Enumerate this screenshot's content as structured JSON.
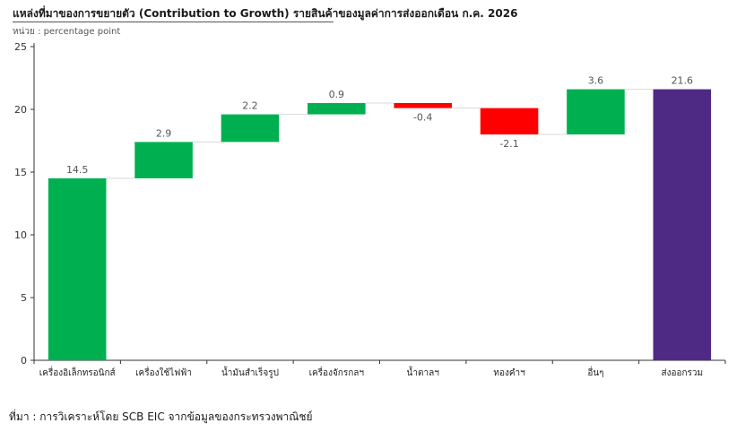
{
  "title": "แหล่งที่มาของการขยายตัว (Contribution to Growth) รายสินค้าของมูลค่าการส่งออกเดือน ก.ค. 2026",
  "unit": "หน่วย : percentage point",
  "source": "ที่มา : การวิเคราะห์โดย SCB EIC จากข้อมูลของกระทรวงพาณิชย์",
  "colors": {
    "positive": "#00b050",
    "negative": "#ff0000",
    "total": "#4e2a84",
    "connector": "#d9d9d9",
    "axis": "#333333"
  },
  "chart_data": {
    "type": "bar",
    "subtype": "waterfall",
    "title": "แหล่งที่มาของการขยายตัว (Contribution to Growth) รายสินค้าของมูลค่าการส่งออกเดือน ก.ค. 2026",
    "ylabel": "",
    "ylim": [
      0,
      25
    ],
    "yticks": [
      0,
      5,
      10,
      15,
      20,
      25
    ],
    "grid": false,
    "categories": [
      "เครื่องอิเล็กทรอนิกส์",
      "เครื่องใช้ไฟฟ้า",
      "น้ำมันสำเร็จรูป",
      "เครื่องจักรกลฯ",
      "น้ำตาลฯ",
      "ทองคำฯ",
      "อื่นๆ",
      "ส่งออกรวม"
    ],
    "values": [
      14.5,
      2.9,
      2.2,
      0.9,
      -0.4,
      -2.1,
      3.6,
      21.6
    ],
    "labels": [
      "14.5",
      "2.9",
      "2.2",
      "0.9",
      "-0.4",
      "-2.1",
      "3.6",
      "21.6"
    ],
    "kinds": [
      "start",
      "delta",
      "delta",
      "delta",
      "delta",
      "delta",
      "delta",
      "total"
    ]
  }
}
